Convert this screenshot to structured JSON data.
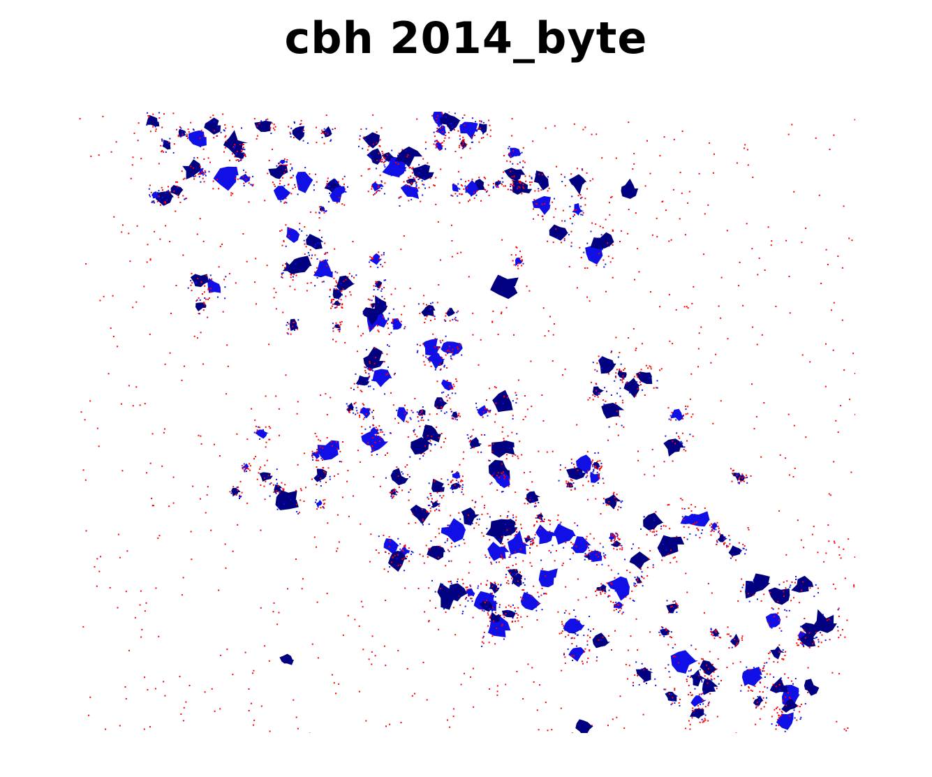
{
  "figure": {
    "title": "cbh 2014_byte"
  },
  "map": {
    "type": "raster",
    "axes_visible": false,
    "legend_visible": false,
    "colors": {
      "background": "#ffffff",
      "dark_water": "#000080",
      "mid_water": "#1010e6",
      "edge": "#ff0000"
    }
  }
}
